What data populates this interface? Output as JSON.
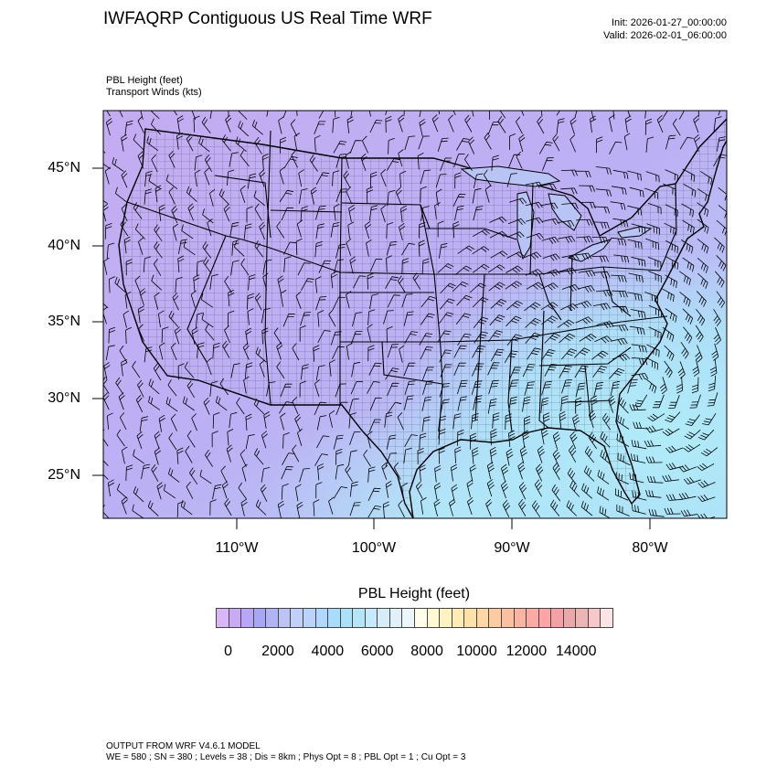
{
  "header": {
    "title": "IWFAQRP Contiguous US Real Time WRF",
    "init": "Init: 2026-01-27_00:00:00",
    "valid": "Valid: 2026-02-01_06:00:00",
    "field_primary": "PBL Height   (feet)",
    "field_secondary": "Transport Winds   (kts)"
  },
  "map": {
    "lat_labels": [
      "45°N",
      "40°N",
      "35°N",
      "30°N",
      "25°N"
    ],
    "lon_labels": [
      "110°W",
      "100°W",
      "90°W",
      "80°W"
    ],
    "colors": {
      "northwest": "#c4acf2",
      "southeast": "#aee6f8",
      "boundaries": "#000000"
    }
  },
  "colorbar": {
    "title": "PBL Height  (feet)",
    "labels": [
      "0",
      "2000",
      "4000",
      "6000",
      "8000",
      "10000",
      "12000",
      "14000"
    ],
    "interval": 500,
    "colors": [
      "#d8b6f8",
      "#c8aaf6",
      "#b8a6f8",
      "#aaa6f6",
      "#b0b4f6",
      "#bcc4f4",
      "#c0d0f8",
      "#b8d4fa",
      "#b0d8fc",
      "#a8dcfc",
      "#aae2fa",
      "#b4e6f8",
      "#c6eaf8",
      "#d6ecf8",
      "#e0f0f8",
      "#eaf6fa",
      "#fffee8",
      "#fffad4",
      "#fff4c0",
      "#feecb4",
      "#fde2a8",
      "#fdd8a4",
      "#fccca0",
      "#fcc0a0",
      "#fcb4a0",
      "#fcaaa4",
      "#fca4a6",
      "#f4a0a4",
      "#eca8a8",
      "#ecb4b4",
      "#f6c8cc",
      "#fce4e6"
    ]
  },
  "footer": {
    "line1": "OUTPUT FROM WRF V4.6.1 MODEL",
    "line2": "WE = 580 ; SN = 380 ; Levels = 38 ; Dis = 8km ; Phys Opt = 8 ; PBL Opt = 1 ; Cu Opt = 3"
  }
}
